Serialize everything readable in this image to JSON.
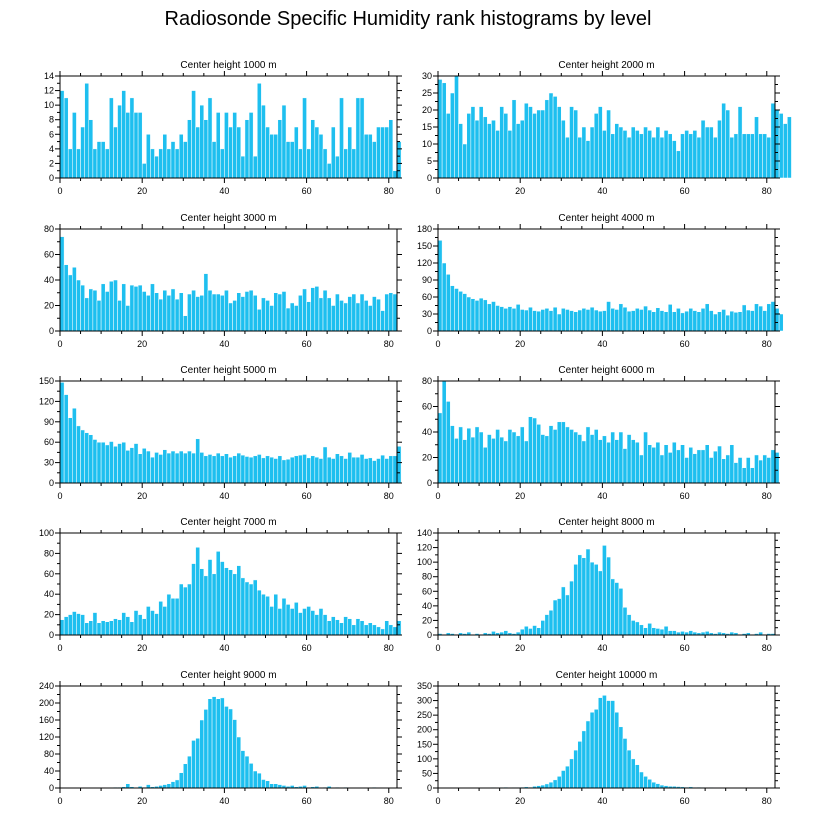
{
  "title": "Radiosonde Specific Humidity rank histograms by level",
  "colors": {
    "bar": "#1ebfef",
    "frame": "#000000"
  },
  "chart_data": [
    {
      "type": "bar",
      "title": "Center height 1000 m",
      "xlim": [
        0,
        82
      ],
      "ylim": [
        0,
        14
      ],
      "xticks": [
        0,
        20,
        40,
        60,
        80
      ],
      "yticks": [
        0,
        2,
        4,
        6,
        8,
        10,
        12,
        14
      ],
      "values": [
        12,
        11,
        4,
        9,
        4,
        7,
        13,
        8,
        4,
        5,
        5,
        4,
        11,
        7,
        10,
        12,
        9,
        11,
        9,
        9,
        2,
        6,
        4,
        3,
        4,
        6,
        4,
        5,
        4,
        6,
        5,
        8,
        12,
        7,
        10,
        8,
        11,
        5,
        9,
        4,
        9,
        7,
        9,
        7,
        3,
        8,
        9,
        3,
        13,
        10,
        7,
        6,
        6,
        8,
        10,
        5,
        5,
        7,
        4,
        11,
        4,
        8,
        7,
        6,
        4,
        2,
        7,
        3,
        11,
        4,
        7,
        4,
        11,
        11,
        6,
        6,
        5,
        7,
        7,
        7,
        8,
        1,
        5
      ]
    },
    {
      "type": "bar",
      "title": "Center height 2000 m",
      "xlim": [
        0,
        82
      ],
      "ylim": [
        0,
        30
      ],
      "xticks": [
        0,
        20,
        40,
        60,
        80
      ],
      "yticks": [
        0,
        5,
        10,
        15,
        20,
        25,
        30
      ],
      "values": [
        29,
        28,
        19,
        25,
        30,
        16,
        10,
        19,
        21,
        17,
        21,
        18,
        16,
        17,
        14,
        21,
        19,
        14,
        23,
        16,
        17,
        22,
        21,
        19,
        20,
        20,
        23,
        25,
        24,
        21,
        17,
        12,
        21,
        20,
        12,
        15,
        11,
        15,
        19,
        21,
        14,
        20,
        13,
        16,
        15,
        14,
        12,
        15,
        14,
        13,
        15,
        14,
        12,
        15,
        12,
        14,
        13,
        11,
        8,
        13,
        14,
        13,
        14,
        12,
        17,
        15,
        15,
        12,
        17,
        22,
        20,
        12,
        13,
        21,
        13,
        13,
        13,
        18,
        13,
        13,
        12,
        22,
        20,
        19,
        16,
        18
      ]
    },
    {
      "type": "bar",
      "title": "Center height 3000 m",
      "xlim": [
        0,
        82
      ],
      "ylim": [
        0,
        80
      ],
      "xticks": [
        0,
        20,
        40,
        60,
        80
      ],
      "yticks": [
        0,
        20,
        40,
        60,
        80
      ],
      "values": [
        74,
        52,
        44,
        50,
        40,
        36,
        26,
        33,
        32,
        24,
        37,
        31,
        39,
        40,
        24,
        37,
        20,
        36,
        35,
        36,
        31,
        28,
        37,
        30,
        25,
        32,
        28,
        33,
        25,
        30,
        12,
        29,
        32,
        27,
        28,
        45,
        32,
        29,
        29,
        28,
        32,
        22,
        24,
        30,
        27,
        31,
        32,
        28,
        17,
        26,
        24,
        20,
        30,
        29,
        31,
        18,
        22,
        20,
        28,
        33,
        23,
        34,
        35,
        26,
        32,
        26,
        20,
        29,
        24,
        22,
        27,
        29,
        22,
        29,
        24,
        20,
        27,
        25,
        16,
        29,
        30,
        29
      ]
    },
    {
      "type": "bar",
      "title": "Center height 4000 m",
      "xlim": [
        0,
        82
      ],
      "ylim": [
        0,
        180
      ],
      "xticks": [
        0,
        20,
        40,
        60,
        80
      ],
      "yticks": [
        0,
        30,
        60,
        90,
        120,
        150,
        180
      ],
      "values": [
        160,
        120,
        100,
        80,
        75,
        70,
        66,
        60,
        57,
        54,
        58,
        55,
        48,
        52,
        45,
        43,
        40,
        43,
        40,
        47,
        38,
        37,
        42,
        36,
        35,
        38,
        40,
        36,
        42,
        30,
        40,
        38,
        36,
        34,
        37,
        40,
        38,
        42,
        37,
        35,
        36,
        52,
        40,
        38,
        48,
        42,
        35,
        36,
        40,
        38,
        44,
        37,
        34,
        41,
        36,
        34,
        47,
        34,
        40,
        32,
        35,
        40,
        36,
        34,
        40,
        48,
        36,
        30,
        34,
        38,
        28,
        35,
        33,
        34,
        46,
        37,
        36,
        48,
        44,
        36,
        48,
        52,
        40,
        30
      ]
    },
    {
      "type": "bar",
      "title": "Center height 5000 m",
      "xlim": [
        0,
        82
      ],
      "ylim": [
        0,
        150
      ],
      "xticks": [
        0,
        20,
        40,
        60,
        80
      ],
      "yticks": [
        0,
        30,
        60,
        90,
        120,
        150
      ],
      "values": [
        148,
        130,
        96,
        110,
        84,
        78,
        74,
        71,
        64,
        60,
        60,
        56,
        61,
        54,
        58,
        60,
        48,
        52,
        58,
        43,
        51,
        47,
        38,
        45,
        42,
        49,
        44,
        47,
        44,
        47,
        44,
        47,
        44,
        65,
        45,
        40,
        42,
        40,
        44,
        40,
        43,
        38,
        40,
        44,
        41,
        39,
        38,
        40,
        42,
        37,
        40,
        38,
        36,
        40,
        34,
        35,
        38,
        40,
        41,
        42,
        37,
        40,
        38,
        36,
        53,
        38,
        36,
        43,
        40,
        36,
        45,
        38,
        38,
        42,
        36,
        37,
        33,
        36,
        41,
        36,
        40,
        40,
        54
      ]
    },
    {
      "type": "bar",
      "title": "Center height 6000 m",
      "xlim": [
        0,
        82
      ],
      "ylim": [
        0,
        80
      ],
      "xticks": [
        0,
        20,
        40,
        60,
        80
      ],
      "yticks": [
        0,
        20,
        40,
        60,
        80
      ],
      "values": [
        55,
        80,
        64,
        45,
        35,
        44,
        34,
        43,
        36,
        44,
        40,
        28,
        38,
        35,
        42,
        36,
        33,
        42,
        40,
        37,
        44,
        33,
        52,
        51,
        46,
        38,
        37,
        45,
        42,
        48,
        48,
        44,
        42,
        40,
        38,
        33,
        44,
        38,
        42,
        34,
        37,
        32,
        40,
        34,
        40,
        27,
        38,
        34,
        32,
        22,
        40,
        30,
        28,
        32,
        22,
        30,
        24,
        32,
        26,
        30,
        20,
        28,
        23,
        26,
        26,
        30,
        20,
        25,
        29,
        19,
        22,
        30,
        16,
        20,
        12,
        20,
        12,
        22,
        18,
        22,
        20,
        26,
        24
      ]
    },
    {
      "type": "bar",
      "title": "Center height 7000 m",
      "xlim": [
        0,
        82
      ],
      "ylim": [
        0,
        100
      ],
      "xticks": [
        0,
        20,
        40,
        60,
        80
      ],
      "yticks": [
        0,
        20,
        40,
        60,
        80,
        100
      ],
      "values": [
        15,
        18,
        20,
        23,
        21,
        20,
        12,
        14,
        22,
        12,
        14,
        13,
        14,
        16,
        15,
        22,
        18,
        13,
        24,
        20,
        16,
        28,
        24,
        21,
        33,
        28,
        40,
        36,
        36,
        50,
        47,
        50,
        70,
        86,
        65,
        58,
        74,
        60,
        82,
        72,
        66,
        64,
        60,
        68,
        56,
        52,
        50,
        54,
        44,
        40,
        38,
        28,
        40,
        26,
        36,
        30,
        26,
        32,
        22,
        26,
        28,
        24,
        20,
        26,
        20,
        14,
        18,
        15,
        12,
        18,
        16,
        10,
        16,
        14,
        10,
        12,
        10,
        8,
        6,
        14,
        10,
        8,
        14
      ]
    },
    {
      "type": "bar",
      "title": "Center height 8000 m",
      "xlim": [
        0,
        82
      ],
      "ylim": [
        0,
        140
      ],
      "xticks": [
        0,
        20,
        40,
        60,
        80
      ],
      "yticks": [
        0,
        20,
        40,
        60,
        80,
        100,
        120,
        140
      ],
      "values": [
        2,
        1,
        3,
        2,
        1,
        3,
        2,
        4,
        1,
        2,
        1,
        3,
        2,
        5,
        3,
        4,
        6,
        3,
        2,
        4,
        8,
        12,
        9,
        13,
        10,
        20,
        28,
        34,
        48,
        50,
        66,
        55,
        74,
        97,
        110,
        106,
        118,
        100,
        97,
        88,
        123,
        107,
        77,
        72,
        64,
        38,
        28,
        20,
        18,
        14,
        10,
        16,
        10,
        9,
        8,
        12,
        6,
        6,
        4,
        5,
        4,
        6,
        4,
        3,
        4,
        5,
        3,
        2,
        4,
        3,
        2,
        4,
        3,
        1,
        2,
        3,
        1,
        2,
        4,
        1,
        2,
        2
      ]
    },
    {
      "type": "bar",
      "title": "Center height 9000 m",
      "xlim": [
        0,
        82
      ],
      "ylim": [
        0,
        240
      ],
      "xticks": [
        0,
        20,
        40,
        60,
        80
      ],
      "yticks": [
        0,
        40,
        80,
        120,
        160,
        200,
        240
      ],
      "values": [
        1,
        0,
        0,
        1,
        0,
        1,
        1,
        0,
        1,
        1,
        0,
        0,
        1,
        2,
        2,
        3,
        10,
        3,
        1,
        4,
        2,
        8,
        3,
        4,
        6,
        8,
        10,
        15,
        19,
        36,
        57,
        75,
        112,
        117,
        160,
        185,
        210,
        215,
        210,
        212,
        192,
        186,
        161,
        120,
        88,
        75,
        58,
        40,
        35,
        20,
        17,
        10,
        10,
        8,
        6,
        4,
        6,
        3,
        4,
        6,
        2,
        3,
        4,
        1,
        2,
        4,
        1,
        2,
        1,
        2,
        1,
        1,
        1,
        1,
        0,
        1,
        2,
        0,
        1,
        0,
        0,
        0
      ]
    },
    {
      "type": "bar",
      "title": "Center height 10000 m",
      "xlim": [
        0,
        82
      ],
      "ylim": [
        0,
        350
      ],
      "xticks": [
        0,
        20,
        40,
        60,
        80
      ],
      "yticks": [
        0,
        50,
        100,
        150,
        200,
        250,
        300,
        350
      ],
      "values": [
        1,
        0,
        1,
        0,
        0,
        1,
        0,
        1,
        0,
        1,
        1,
        0,
        1,
        2,
        1,
        2,
        3,
        1,
        2,
        2,
        3,
        4,
        3,
        6,
        8,
        10,
        14,
        20,
        28,
        40,
        60,
        75,
        100,
        130,
        160,
        196,
        230,
        260,
        270,
        310,
        318,
        300,
        300,
        260,
        210,
        170,
        130,
        100,
        80,
        55,
        40,
        30,
        20,
        15,
        10,
        8,
        6,
        6,
        5,
        4,
        3,
        4,
        2,
        3,
        2,
        1,
        2,
        1,
        1,
        1,
        0,
        1,
        1,
        0,
        1,
        0,
        1,
        0,
        0,
        1,
        0,
        0
      ]
    }
  ]
}
